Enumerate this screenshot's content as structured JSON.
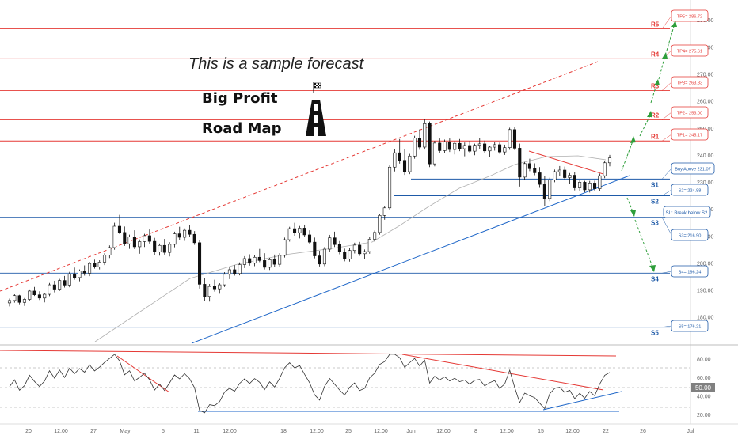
{
  "chart_data": {
    "type": "candlestick",
    "annotations": {
      "sample_note": "This is a sample forecast",
      "title_line1": "Big Profit",
      "title_line2": "Road Map"
    },
    "price_axis": {
      "ticks": [
        "290.00",
        "280.00",
        "270.00",
        "260.00",
        "250.00",
        "240.00",
        "230.00",
        "220.00",
        "210.00",
        "200.00",
        "190.00",
        "180.00"
      ],
      "range": [
        172,
        293
      ]
    },
    "time_axis": {
      "ticks": [
        "20",
        "12:00",
        "27",
        "May",
        "5",
        "11",
        "12:00",
        "18",
        "12:00",
        "25",
        "12:00",
        "Jun",
        "12:00",
        "8",
        "12:00",
        "15",
        "12:00",
        "22",
        "26",
        "Jul"
      ]
    },
    "levels": [
      {
        "label": "R5",
        "price": 286.72,
        "tag": "TP5= 286.72",
        "color": "#e53935"
      },
      {
        "label": "R4",
        "price": 275.61,
        "tag": "TP4= 275.61",
        "color": "#e53935"
      },
      {
        "label": "R3",
        "price": 263.83,
        "tag": "TP3= 263.83",
        "color": "#e53935"
      },
      {
        "label": "R2",
        "price": 253.0,
        "tag": "TP2= 253.00",
        "color": "#e53935"
      },
      {
        "label": "R1",
        "price": 245.17,
        "tag": "TP1= 245.17",
        "color": "#e53935"
      },
      {
        "label": "S1",
        "price": 231.07,
        "tag": "Buy Above 231.07",
        "color": "#1e5aa8"
      },
      {
        "label": "S2",
        "price": 224.88,
        "tag": "S2= 224.88",
        "color": "#1e5aa8"
      },
      {
        "label": "S3",
        "price": 216.9,
        "tag": "S3= 216.90",
        "color": "#1e5aa8"
      },
      {
        "label": "S4",
        "price": 196.24,
        "tag": "S4= 196.24",
        "color": "#1e5aa8"
      },
      {
        "label": "S5",
        "price": 176.21,
        "tag": "S5= 176.21",
        "color": "#1e5aa8"
      }
    ],
    "sl_tag": "SL: Break below S2",
    "rsi": {
      "ticks": [
        "80.00",
        "60.00",
        "40.00",
        "20.00"
      ],
      "current_value": "50.00",
      "range": [
        15,
        90
      ]
    },
    "candles": [
      [
        185.2,
        186.8,
        183.9,
        186.1
      ],
      [
        186.1,
        188.4,
        185.3,
        187.9
      ],
      [
        187.9,
        188.2,
        184.7,
        185.4
      ],
      [
        185.4,
        187.0,
        184.1,
        186.5
      ],
      [
        186.5,
        190.2,
        185.9,
        189.6
      ],
      [
        189.6,
        191.1,
        187.8,
        188.2
      ],
      [
        188.2,
        189.5,
        186.3,
        187.0
      ],
      [
        187.0,
        188.9,
        185.4,
        188.4
      ],
      [
        188.4,
        192.6,
        187.7,
        191.9
      ],
      [
        191.9,
        193.4,
        189.1,
        190.3
      ],
      [
        190.3,
        194.1,
        189.6,
        193.5
      ],
      [
        193.5,
        195.2,
        190.9,
        191.8
      ],
      [
        191.8,
        196.7,
        191.0,
        195.9
      ],
      [
        195.9,
        198.3,
        193.8,
        194.6
      ],
      [
        194.6,
        197.6,
        193.2,
        197.0
      ],
      [
        197.0,
        199.1,
        195.3,
        196.2
      ],
      [
        196.2,
        200.4,
        195.1,
        199.8
      ],
      [
        199.8,
        201.2,
        197.9,
        198.5
      ],
      [
        198.5,
        201.0,
        197.6,
        200.3
      ],
      [
        200.3,
        203.6,
        199.2,
        202.9
      ],
      [
        202.9,
        206.5,
        201.8,
        205.7
      ],
      [
        205.7,
        214.9,
        204.9,
        213.6
      ],
      [
        213.6,
        217.8,
        210.7,
        211.3
      ],
      [
        211.3,
        213.5,
        206.3,
        207.1
      ],
      [
        207.1,
        210.5,
        205.2,
        209.6
      ],
      [
        209.6,
        212.1,
        205.1,
        206.0
      ],
      [
        206.0,
        208.7,
        203.4,
        207.9
      ],
      [
        207.9,
        210.8,
        205.9,
        210.1
      ],
      [
        210.1,
        212.4,
        207.2,
        208.0
      ],
      [
        208.0,
        209.3,
        203.0,
        204.1
      ],
      [
        204.1,
        207.2,
        202.7,
        206.5
      ],
      [
        206.5,
        208.9,
        203.1,
        203.9
      ],
      [
        203.9,
        207.7,
        202.4,
        206.9
      ],
      [
        206.9,
        211.6,
        205.8,
        210.8
      ],
      [
        210.8,
        213.4,
        208.6,
        209.5
      ],
      [
        209.5,
        212.8,
        208.2,
        212.1
      ],
      [
        212.1,
        214.1,
        209.7,
        210.6
      ],
      [
        210.6,
        211.8,
        206.7,
        207.5
      ],
      [
        207.5,
        208.6,
        190.5,
        192.1
      ],
      [
        192.1,
        194.3,
        186.0,
        187.6
      ],
      [
        187.6,
        192.2,
        185.7,
        191.3
      ],
      [
        191.3,
        193.8,
        189.4,
        190.4
      ],
      [
        190.4,
        192.5,
        188.6,
        191.9
      ],
      [
        191.9,
        196.6,
        191.1,
        195.8
      ],
      [
        195.8,
        198.4,
        194.0,
        197.5
      ],
      [
        197.5,
        199.2,
        195.3,
        196.1
      ],
      [
        196.1,
        200.2,
        195.4,
        199.4
      ],
      [
        199.4,
        202.5,
        198.1,
        201.6
      ],
      [
        201.6,
        203.2,
        199.0,
        199.9
      ],
      [
        199.9,
        202.8,
        198.8,
        202.1
      ],
      [
        202.1,
        205.2,
        200.3,
        200.9
      ],
      [
        200.9,
        203.6,
        197.6,
        198.4
      ],
      [
        198.4,
        201.9,
        197.4,
        201.2
      ],
      [
        201.2,
        203.1,
        198.6,
        199.5
      ],
      [
        199.5,
        203.6,
        198.7,
        202.8
      ],
      [
        202.8,
        209.4,
        202.0,
        208.6
      ],
      [
        208.6,
        213.4,
        207.9,
        212.7
      ],
      [
        212.7,
        214.9,
        210.1,
        211.2
      ],
      [
        211.2,
        213.7,
        209.1,
        212.9
      ],
      [
        212.9,
        214.2,
        209.7,
        210.4
      ],
      [
        210.4,
        212.1,
        206.9,
        207.7
      ],
      [
        207.7,
        209.4,
        201.7,
        202.6
      ],
      [
        202.6,
        204.5,
        198.7,
        199.6
      ],
      [
        199.6,
        205.9,
        198.8,
        205.1
      ],
      [
        205.1,
        210.4,
        204.2,
        209.3
      ],
      [
        209.3,
        211.6,
        205.9,
        206.8
      ],
      [
        206.8,
        208.1,
        203.2,
        204.1
      ],
      [
        204.1,
        205.3,
        200.6,
        201.5
      ],
      [
        201.5,
        205.4,
        200.5,
        204.6
      ],
      [
        204.6,
        207.5,
        203.5,
        206.6
      ],
      [
        206.6,
        207.8,
        202.6,
        203.4
      ],
      [
        203.4,
        205.0,
        201.6,
        204.2
      ],
      [
        204.2,
        209.6,
        203.4,
        208.8
      ],
      [
        208.8,
        212.0,
        207.9,
        211.3
      ],
      [
        211.3,
        218.3,
        210.5,
        217.6
      ],
      [
        217.6,
        221.1,
        216.0,
        220.4
      ],
      [
        220.4,
        236.2,
        219.7,
        235.5
      ],
      [
        235.5,
        242.3,
        233.9,
        240.8
      ],
      [
        240.8,
        245.9,
        236.8,
        238.0
      ],
      [
        238.0,
        242.1,
        232.6,
        233.8
      ],
      [
        233.8,
        240.4,
        232.9,
        239.6
      ],
      [
        239.6,
        247.1,
        238.6,
        246.3
      ],
      [
        246.3,
        249.5,
        241.9,
        242.9
      ],
      [
        242.9,
        253.2,
        242.0,
        251.6
      ],
      [
        251.6,
        252.4,
        235.5,
        236.7
      ],
      [
        236.7,
        245.2,
        235.8,
        244.4
      ],
      [
        244.4,
        246.1,
        240.7,
        241.6
      ],
      [
        241.6,
        245.7,
        240.6,
        244.8
      ],
      [
        244.8,
        246.1,
        241.1,
        242.0
      ],
      [
        242.0,
        245.1,
        240.2,
        244.3
      ],
      [
        244.3,
        245.9,
        241.4,
        242.3
      ],
      [
        242.3,
        244.6,
        239.5,
        243.5
      ],
      [
        243.5,
        245.2,
        240.6,
        241.4
      ],
      [
        241.4,
        244.2,
        239.9,
        243.6
      ],
      [
        243.6,
        246.4,
        242.2,
        244.1
      ],
      [
        244.1,
        245.3,
        240.8,
        241.5
      ],
      [
        241.5,
        243.5,
        239.4,
        242.9
      ],
      [
        242.9,
        244.8,
        241.6,
        243.8
      ],
      [
        243.8,
        244.6,
        240.4,
        241.1
      ],
      [
        241.1,
        243.8,
        240.0,
        242.7
      ],
      [
        242.7,
        250.1,
        241.9,
        249.4
      ],
      [
        249.4,
        250.3,
        241.8,
        242.5
      ],
      [
        242.5,
        244.2,
        228.3,
        231.8
      ],
      [
        231.8,
        237.4,
        230.6,
        236.8
      ],
      [
        236.8,
        238.6,
        234.0,
        234.9
      ],
      [
        234.9,
        236.9,
        232.5,
        233.4
      ],
      [
        233.4,
        235.5,
        227.8,
        229.1
      ],
      [
        229.1,
        232.3,
        221.2,
        223.9
      ],
      [
        223.9,
        231.6,
        222.9,
        230.8
      ],
      [
        230.8,
        234.6,
        229.9,
        233.8
      ],
      [
        233.8,
        235.9,
        232.2,
        234.4
      ],
      [
        234.4,
        235.7,
        230.9,
        231.6
      ],
      [
        231.6,
        233.3,
        229.2,
        232.5
      ],
      [
        232.5,
        233.7,
        226.9,
        227.8
      ],
      [
        227.8,
        230.9,
        226.6,
        229.9
      ],
      [
        229.9,
        230.4,
        226.2,
        227.1
      ],
      [
        227.1,
        230.4,
        226.1,
        229.6
      ],
      [
        229.6,
        230.5,
        226.8,
        227.5
      ],
      [
        227.5,
        233.1,
        226.7,
        232.3
      ],
      [
        232.3,
        237.8,
        231.4,
        237.1
      ],
      [
        237.1,
        240.0,
        235.8,
        238.9
      ]
    ]
  }
}
